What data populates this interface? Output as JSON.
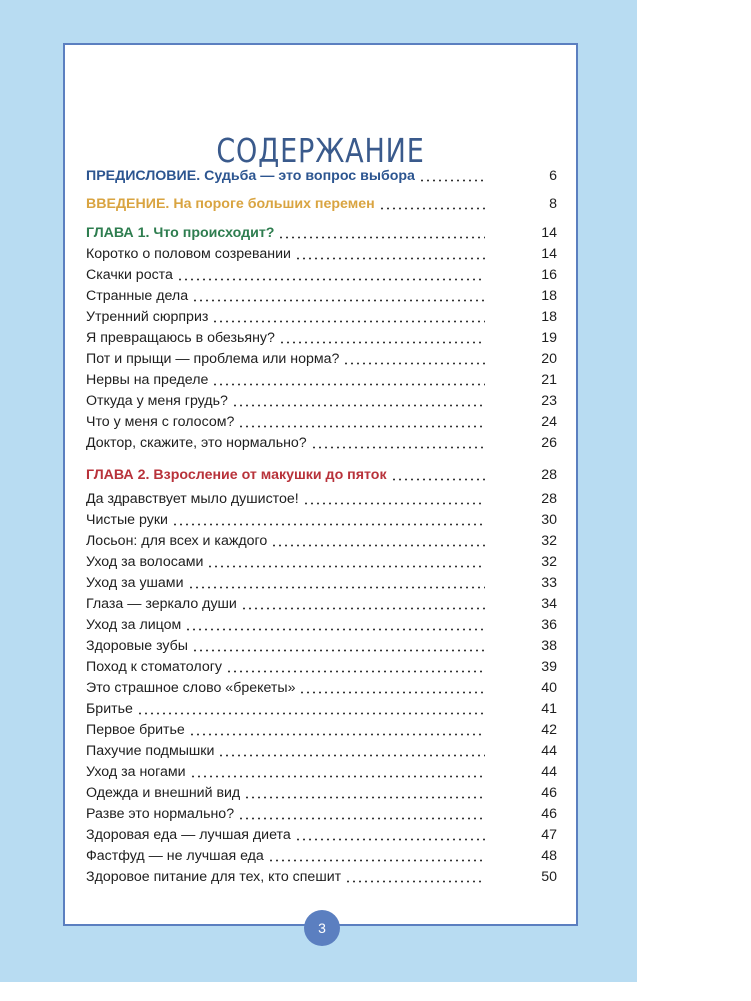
{
  "title": "СОДЕРЖАНИЕ",
  "preface": {
    "label": "ПРЕДИСЛОВИЕ.",
    "text": "Судьба — это вопрос выбора",
    "page": "6"
  },
  "intro": {
    "label": "ВВЕДЕНИЕ.",
    "text": "На пороге больших перемен",
    "page": "8"
  },
  "chapters": [
    {
      "label": "ГЛАВА 1.",
      "text": "Что происходит?",
      "page": "14",
      "items": [
        {
          "title": "Коротко о половом созревании",
          "page": "14"
        },
        {
          "title": "Скачки роста",
          "page": "16"
        },
        {
          "title": "Странные дела",
          "page": "18"
        },
        {
          "title": "Утренний сюрприз",
          "page": "18"
        },
        {
          "title": "Я превращаюсь в обезьяну?",
          "page": "19"
        },
        {
          "title": "Пот и прыщи — проблема или норма?",
          "page": "20"
        },
        {
          "title": "Нервы на пределе",
          "page": "21"
        },
        {
          "title": "Откуда у меня грудь?",
          "page": "23"
        },
        {
          "title": "Что у меня с голосом?",
          "page": "24"
        },
        {
          "title": "Доктор, скажите, это нормально?",
          "page": "26"
        }
      ]
    },
    {
      "label": "ГЛАВА 2.",
      "text": "Взросление от макушки до пяток",
      "page": "28",
      "items": [
        {
          "title": "Да здравствует мыло душистое!",
          "page": "28"
        },
        {
          "title": "Чистые руки",
          "page": "30"
        },
        {
          "title": "Лосьон: для всех и каждого",
          "page": "32"
        },
        {
          "title": "Уход за волосами",
          "page": "32"
        },
        {
          "title": "Уход за ушами",
          "page": "33"
        },
        {
          "title": "Глаза — зеркало души",
          "page": "34"
        },
        {
          "title": "Уход за лицом",
          "page": "36"
        },
        {
          "title": "Здоровые зубы",
          "page": "38"
        },
        {
          "title": "Поход к стоматологу",
          "page": "39"
        },
        {
          "title": "Это страшное слово «брекеты»",
          "page": "40"
        },
        {
          "title": "Бритье",
          "page": "41"
        },
        {
          "title": "Первое бритье",
          "page": "42"
        },
        {
          "title": "Пахучие подмышки",
          "page": "44"
        },
        {
          "title": "Уход за ногами",
          "page": "44"
        },
        {
          "title": "Одежда и внешний вид",
          "page": "46"
        },
        {
          "title": "Разве это нормально?",
          "page": "46"
        },
        {
          "title": "Здоровая еда — лучшая диета",
          "page": "47"
        },
        {
          "title": "Фастфуд — не лучшая еда",
          "page": "48"
        },
        {
          "title": "Здоровое питание для тех, кто спешит",
          "page": "50"
        }
      ]
    }
  ],
  "page_number": "3",
  "colors": {
    "background": "#b8dcf2",
    "border": "#5b7fc0",
    "preface": "#2c5590",
    "intro": "#d9a441",
    "chapter1": "#2e7d4f",
    "chapter2": "#b8323a"
  }
}
